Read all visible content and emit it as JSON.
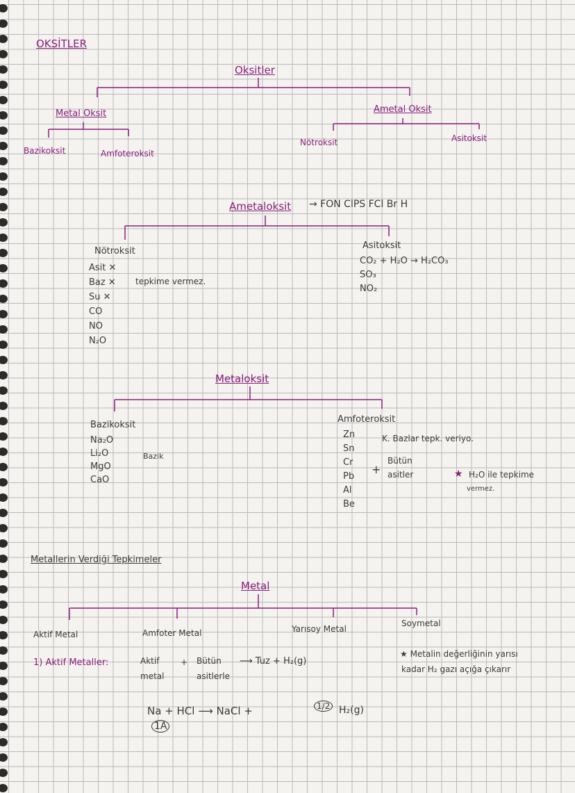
{
  "title": "OKSİTLER",
  "tree1": {
    "root": "Oksitler",
    "left": "Metal Oksit",
    "right": "Ametal Oksit",
    "left_children": [
      "Bazikoksit",
      "Amfoteroksit"
    ],
    "right_children": [
      "Nötroksit",
      "Asitoksit"
    ]
  },
  "ametal": {
    "heading": "Ametaloksit",
    "arrow_text": "→ FON  ClPS  FCl  Br  H",
    "notr": {
      "title": "Nötroksit",
      "items": [
        "Asit ✕",
        "Baz ✕",
        "Su ✕",
        "CO",
        "NO",
        "N₂O"
      ],
      "note": "tepkime vermez."
    },
    "asit": {
      "title": "Asitoksit",
      "items": [
        "CO₂ + H₂O → H₂CO₃",
        "SO₃",
        "NO₂"
      ]
    }
  },
  "metaloksit": {
    "heading": "Metaloksit",
    "bazik": {
      "title": "Bazikoksit",
      "items": [
        "Na₂O",
        "Li₂O",
        "MgO",
        "CaO"
      ],
      "note": "Bazik"
    },
    "amfoter": {
      "title": "Amfoteroksit",
      "items": [
        "Zn",
        "Sn",
        "Cr",
        "Pb",
        "Al",
        "Be"
      ],
      "note1": "K. Bazlar tepk. veriyo.",
      "plus": "+",
      "note2a": "Bütün",
      "note2b": "asitler",
      "note3a": "H₂O ile tepkime",
      "note3b": "vermez."
    }
  },
  "metals": {
    "section": "Metallerin Verdiği Tepkimeler",
    "root": "Metal",
    "children": [
      "Aktif Metal",
      "Amfoter Metal",
      "Yarısoy Metal",
      "Soymetal"
    ],
    "line1_label": "1) Aktif Metaller:",
    "line1_a": "Aktif",
    "line1_a2": "metal",
    "line1_plus": "+",
    "line1_b": "Bütün",
    "line1_b2": "asitlerle",
    "line1_result": "⟶ Tuz + H₂(g)",
    "star_note1": "★ Metalin değerliğinin yarısı",
    "star_note2": "kadar H₂ gazı açığa çıkarır",
    "eq_left": "Na + HCl ⟶ NaCl +",
    "eq_coef": "1/2",
    "eq_right": "H₂(g)",
    "eq_group": "1A"
  }
}
